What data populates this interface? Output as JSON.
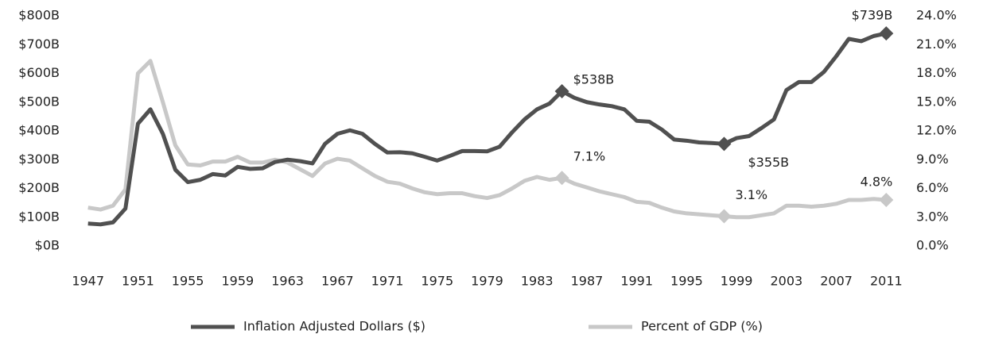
{
  "chart_data": {
    "type": "line",
    "x": [
      1947,
      1948,
      1949,
      1950,
      1951,
      1952,
      1953,
      1954,
      1955,
      1956,
      1957,
      1958,
      1959,
      1960,
      1961,
      1962,
      1963,
      1964,
      1965,
      1966,
      1967,
      1968,
      1969,
      1970,
      1971,
      1972,
      1973,
      1974,
      1975,
      1976,
      1977,
      1978,
      1979,
      1980,
      1981,
      1982,
      1983,
      1984,
      1985,
      1986,
      1987,
      1988,
      1989,
      1990,
      1991,
      1992,
      1993,
      1994,
      1995,
      1996,
      1997,
      1998,
      1999,
      2000,
      2001,
      2002,
      2003,
      2004,
      2005,
      2006,
      2007,
      2008,
      2009,
      2010,
      2011
    ],
    "series": [
      {
        "name": "Inflation Adjusted Dollars ($)",
        "color": "#505050",
        "axis": "y",
        "values": [
          78,
          75,
          82,
          130,
          425,
          475,
          390,
          265,
          222,
          230,
          250,
          245,
          275,
          268,
          270,
          292,
          300,
          295,
          287,
          355,
          390,
          402,
          390,
          355,
          325,
          326,
          322,
          310,
          297,
          313,
          330,
          330,
          329,
          345,
          395,
          440,
          475,
          495,
          538,
          515,
          500,
          492,
          486,
          475,
          435,
          432,
          405,
          370,
          366,
          360,
          358,
          355,
          375,
          382,
          410,
          440,
          542,
          570,
          570,
          605,
          660,
          720,
          712,
          730,
          739
        ],
        "value_labels": [
          null,
          null,
          null,
          null,
          null,
          null,
          null,
          null,
          null,
          null,
          null,
          null,
          null,
          null,
          null,
          null,
          null,
          null,
          null,
          null,
          null,
          null,
          null,
          null,
          null,
          null,
          null,
          null,
          null,
          null,
          null,
          null,
          null,
          null,
          null,
          null,
          null,
          null,
          "$538B",
          null,
          null,
          null,
          null,
          null,
          null,
          null,
          null,
          null,
          null,
          null,
          null,
          "$355B",
          null,
          null,
          null,
          null,
          null,
          null,
          null,
          null,
          null,
          null,
          null,
          null,
          "$739B"
        ]
      },
      {
        "name": "Percent of GDP (%)",
        "color": "#c8c8c8",
        "axis": "y2",
        "values": [
          4.0,
          3.8,
          4.2,
          5.9,
          18.0,
          19.3,
          15.0,
          10.5,
          8.5,
          8.4,
          8.8,
          8.8,
          9.3,
          8.7,
          8.7,
          9.0,
          8.7,
          8.0,
          7.3,
          8.6,
          9.1,
          8.9,
          8.1,
          7.3,
          6.7,
          6.5,
          6.0,
          5.6,
          5.4,
          5.5,
          5.5,
          5.2,
          5.0,
          5.3,
          6.0,
          6.8,
          7.2,
          6.9,
          7.1,
          6.5,
          6.1,
          5.7,
          5.4,
          5.1,
          4.6,
          4.5,
          4.0,
          3.6,
          3.4,
          3.3,
          3.2,
          3.1,
          3.0,
          3.0,
          3.2,
          3.4,
          4.2,
          4.2,
          4.1,
          4.2,
          4.4,
          4.8,
          4.8,
          4.9,
          4.8
        ],
        "value_labels": [
          null,
          null,
          null,
          null,
          null,
          null,
          null,
          null,
          null,
          null,
          null,
          null,
          null,
          null,
          null,
          null,
          null,
          null,
          null,
          null,
          null,
          null,
          null,
          null,
          null,
          null,
          null,
          null,
          null,
          null,
          null,
          null,
          null,
          null,
          null,
          null,
          null,
          null,
          "7.1%",
          null,
          null,
          null,
          null,
          null,
          null,
          null,
          null,
          null,
          null,
          null,
          null,
          "3.1%",
          null,
          null,
          null,
          null,
          null,
          null,
          null,
          null,
          null,
          null,
          null,
          null,
          "4.8%"
        ]
      }
    ],
    "xlim": [
      1946,
      2012
    ],
    "xticks": [
      1947,
      1951,
      1955,
      1959,
      1963,
      1967,
      1971,
      1975,
      1979,
      1983,
      1987,
      1991,
      1995,
      1999,
      2003,
      2007,
      2011
    ],
    "ylim": [
      0,
      800
    ],
    "yticks": [
      {
        "value": 0,
        "label": "$0B"
      },
      {
        "value": 100,
        "label": "$100B"
      },
      {
        "value": 200,
        "label": "$200B"
      },
      {
        "value": 300,
        "label": "$300B"
      },
      {
        "value": 400,
        "label": "$400B"
      },
      {
        "value": 500,
        "label": "$500B"
      },
      {
        "value": 600,
        "label": "$600B"
      },
      {
        "value": 700,
        "label": "$700B"
      },
      {
        "value": 800,
        "label": "$800B"
      }
    ],
    "y2lim": [
      0,
      24
    ],
    "y2ticks": [
      {
        "value": 0,
        "label": "0.0%"
      },
      {
        "value": 3,
        "label": "3.0%"
      },
      {
        "value": 6,
        "label": "6.0%"
      },
      {
        "value": 9,
        "label": "9.0%"
      },
      {
        "value": 12,
        "label": "12.0%"
      },
      {
        "value": 15,
        "label": "15.0%"
      },
      {
        "value": 18,
        "label": "18.0%"
      },
      {
        "value": 21,
        "label": "21.0%"
      },
      {
        "value": 24,
        "label": "24.0%"
      }
    ],
    "grid": false,
    "legend": "bottom"
  }
}
